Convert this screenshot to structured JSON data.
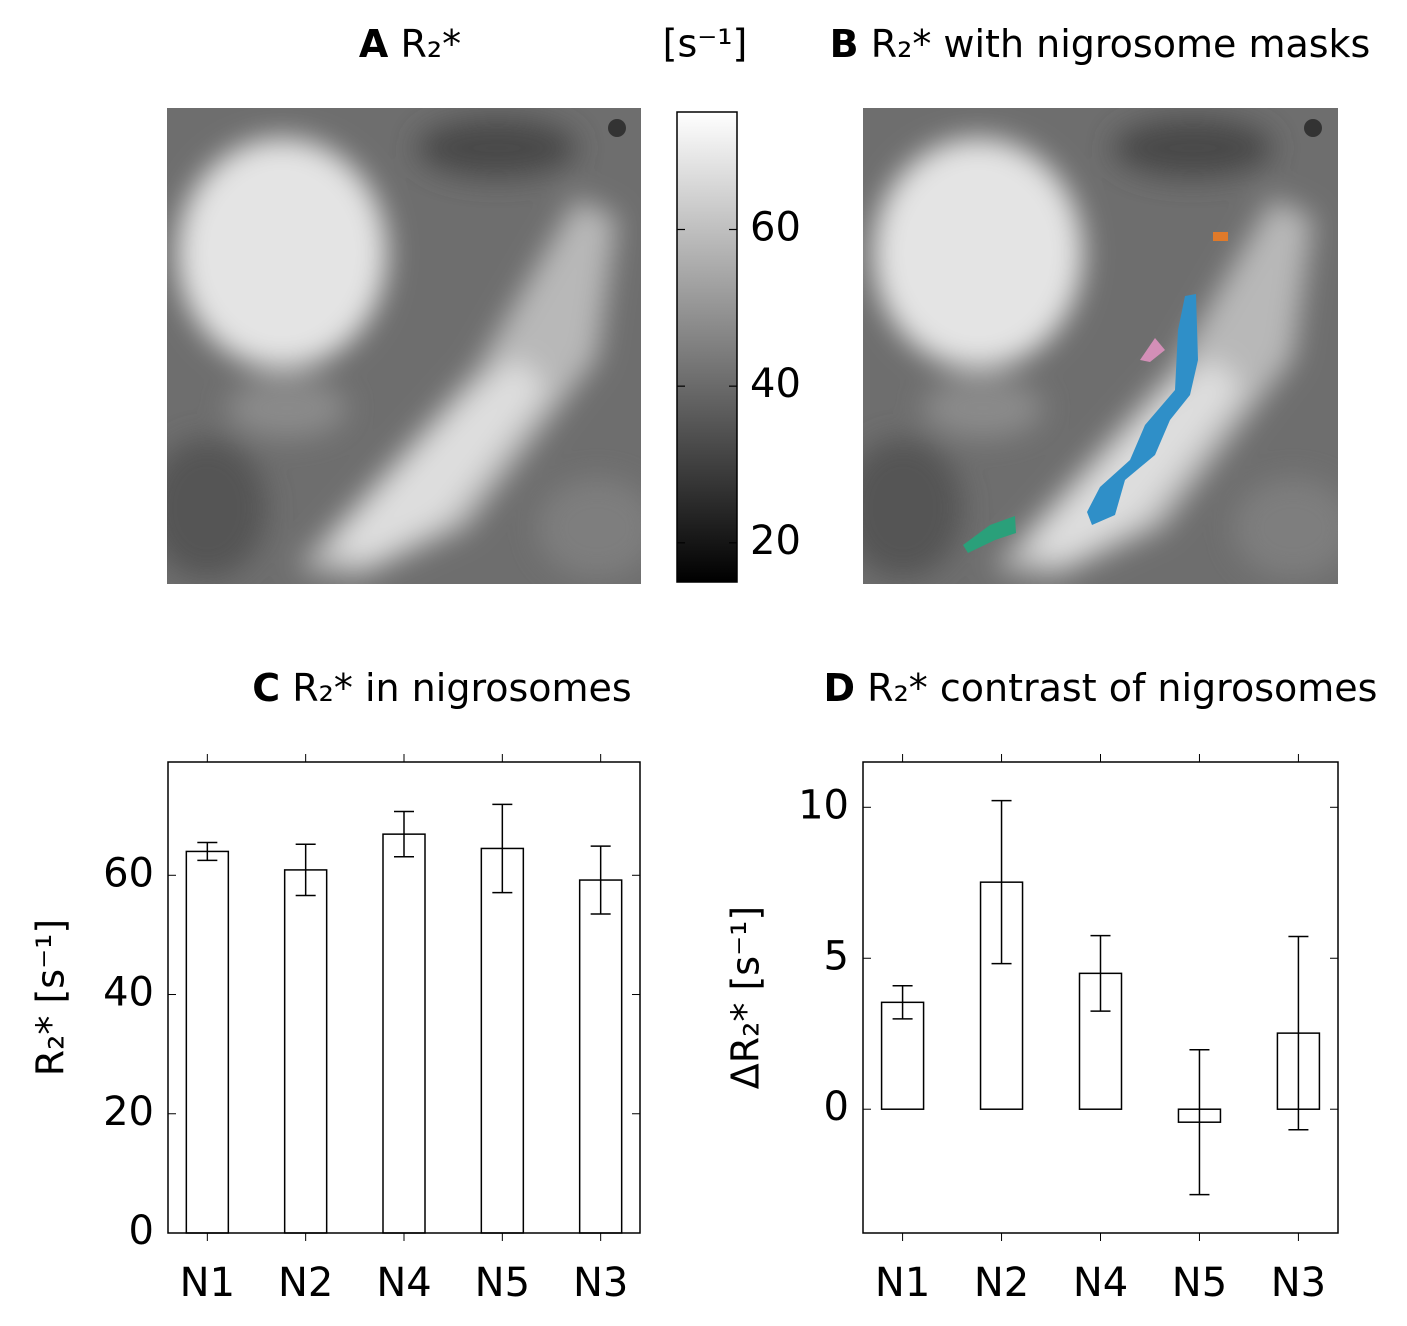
{
  "panel_a": {
    "letter": "A",
    "title": "R₂*"
  },
  "panel_b": {
    "letter": "B",
    "title": "R₂* with nigrosome masks"
  },
  "colorbar": {
    "unit": "[s⁻¹]",
    "clim": [
      15,
      75
    ],
    "ticks": [
      20,
      40,
      60
    ]
  },
  "chart_data": [
    {
      "type": "bar",
      "letter": "C",
      "title": "R₂* in nigrosomes",
      "ylabel": "R₂* [s⁻¹]",
      "categories": [
        "N1",
        "N2",
        "N4",
        "N5",
        "N3"
      ],
      "category_colors": [
        "#0072b2",
        "#009e73",
        "#cc79a7",
        "#f0e442",
        "#d55e00"
      ],
      "values": [
        64.0,
        60.9,
        66.9,
        64.5,
        59.2
      ],
      "errors": [
        1.5,
        4.3,
        3.8,
        7.4,
        5.7
      ],
      "ylim": [
        0,
        79
      ],
      "yticks": [
        0,
        20,
        40,
        60
      ]
    },
    {
      "type": "bar",
      "letter": "D",
      "title": "R₂* contrast of nigrosomes",
      "ylabel": "ΔR₂* [s⁻¹]",
      "categories": [
        "N1",
        "N2",
        "N4",
        "N5",
        "N3"
      ],
      "category_colors": [
        "#0072b2",
        "#009e73",
        "#cc79a7",
        "#f0e442",
        "#d55e00"
      ],
      "values": [
        3.54,
        7.52,
        4.5,
        -0.43,
        2.52
      ],
      "errors": [
        0.55,
        2.7,
        1.25,
        2.4,
        3.2
      ],
      "ylim": [
        -4.1,
        11.5
      ],
      "yticks": [
        0,
        5,
        10
      ]
    }
  ]
}
